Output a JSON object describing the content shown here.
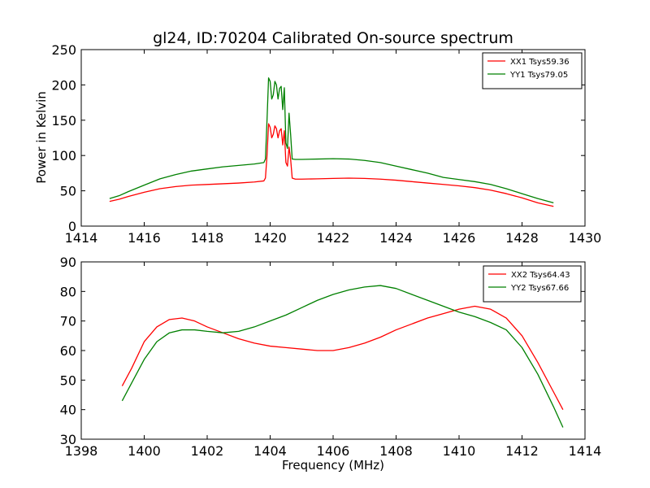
{
  "figure": {
    "title": "gl24, ID:70204 Calibrated On-source spectrum",
    "ylabel": "Power in Kelvin",
    "xlabel": "Frequency (MHz)"
  },
  "chart_data": [
    {
      "type": "line",
      "title": "gl24, ID:70204 Calibrated On-source spectrum",
      "xlabel": "",
      "ylabel": "Power in Kelvin",
      "xlim": [
        1414,
        1430
      ],
      "ylim": [
        0,
        250
      ],
      "xticks": [
        1414,
        1416,
        1418,
        1420,
        1422,
        1424,
        1426,
        1428,
        1430
      ],
      "yticks": [
        0,
        50,
        100,
        150,
        200,
        250
      ],
      "legend_position": "top-right",
      "series": [
        {
          "name": "XX1 Tsys59.36",
          "color": "#ff0000",
          "points": [
            [
              1414.9,
              35
            ],
            [
              1415.2,
              38
            ],
            [
              1415.5,
              42
            ],
            [
              1416.0,
              48
            ],
            [
              1416.5,
              53
            ],
            [
              1417.0,
              56
            ],
            [
              1417.5,
              58
            ],
            [
              1418.0,
              59
            ],
            [
              1418.5,
              60
            ],
            [
              1419.0,
              61
            ],
            [
              1419.5,
              62.5
            ],
            [
              1419.8,
              64
            ],
            [
              1419.85,
              68
            ],
            [
              1419.9,
              100
            ],
            [
              1419.95,
              145
            ],
            [
              1420.0,
              140
            ],
            [
              1420.05,
              125
            ],
            [
              1420.1,
              130
            ],
            [
              1420.15,
              142
            ],
            [
              1420.2,
              138
            ],
            [
              1420.25,
              125
            ],
            [
              1420.3,
              135
            ],
            [
              1420.35,
              138
            ],
            [
              1420.4,
              115
            ],
            [
              1420.45,
              135
            ],
            [
              1420.5,
              90
            ],
            [
              1420.55,
              85
            ],
            [
              1420.6,
              112
            ],
            [
              1420.65,
              95
            ],
            [
              1420.7,
              68
            ],
            [
              1420.8,
              66.5
            ],
            [
              1421.0,
              66.5
            ],
            [
              1421.5,
              67
            ],
            [
              1422.0,
              67.5
            ],
            [
              1422.5,
              68
            ],
            [
              1423.0,
              67.5
            ],
            [
              1423.5,
              66.5
            ],
            [
              1424.0,
              65
            ],
            [
              1424.5,
              63
            ],
            [
              1425.0,
              61
            ],
            [
              1425.5,
              59
            ],
            [
              1426.0,
              57
            ],
            [
              1426.5,
              54.5
            ],
            [
              1427.0,
              51
            ],
            [
              1427.5,
              46
            ],
            [
              1428.0,
              40
            ],
            [
              1428.5,
              33
            ],
            [
              1429.0,
              28
            ]
          ]
        },
        {
          "name": "YY1 Tsys79.05",
          "color": "#008000",
          "points": [
            [
              1414.9,
              39
            ],
            [
              1415.2,
              43
            ],
            [
              1415.5,
              49
            ],
            [
              1416.0,
              58
            ],
            [
              1416.5,
              67
            ],
            [
              1417.0,
              73
            ],
            [
              1417.5,
              78
            ],
            [
              1418.0,
              81
            ],
            [
              1418.5,
              84
            ],
            [
              1419.0,
              86
            ],
            [
              1419.5,
              88
            ],
            [
              1419.8,
              90
            ],
            [
              1419.85,
              95
            ],
            [
              1419.9,
              150
            ],
            [
              1419.95,
              210
            ],
            [
              1420.0,
              205
            ],
            [
              1420.05,
              180
            ],
            [
              1420.1,
              186
            ],
            [
              1420.15,
              205
            ],
            [
              1420.2,
              200
            ],
            [
              1420.25,
              180
            ],
            [
              1420.3,
              195
            ],
            [
              1420.35,
              198
            ],
            [
              1420.4,
              165
            ],
            [
              1420.45,
              196
            ],
            [
              1420.5,
              118
            ],
            [
              1420.55,
              110
            ],
            [
              1420.6,
              160
            ],
            [
              1420.65,
              130
            ],
            [
              1420.7,
              95
            ],
            [
              1420.8,
              94.5
            ],
            [
              1421.0,
              94.5
            ],
            [
              1421.5,
              95
            ],
            [
              1422.0,
              95.5
            ],
            [
              1422.5,
              95
            ],
            [
              1423.0,
              93
            ],
            [
              1423.5,
              90
            ],
            [
              1424.0,
              85
            ],
            [
              1424.5,
              80
            ],
            [
              1425.0,
              75
            ],
            [
              1425.5,
              69
            ],
            [
              1426.0,
              66
            ],
            [
              1426.5,
              63
            ],
            [
              1427.0,
              59
            ],
            [
              1427.5,
              53
            ],
            [
              1428.0,
              46
            ],
            [
              1428.5,
              39
            ],
            [
              1429.0,
              33
            ]
          ]
        }
      ]
    },
    {
      "type": "line",
      "title": "",
      "xlabel": "Frequency (MHz)",
      "ylabel": "",
      "xlim": [
        1398,
        1414
      ],
      "ylim": [
        30,
        90
      ],
      "xticks": [
        1398,
        1400,
        1402,
        1404,
        1406,
        1408,
        1410,
        1412,
        1414
      ],
      "yticks": [
        30,
        40,
        50,
        60,
        70,
        80,
        90
      ],
      "legend_position": "top-right",
      "series": [
        {
          "name": "XX2 Tsys64.43",
          "color": "#ff0000",
          "points": [
            [
              1399.3,
              48
            ],
            [
              1399.6,
              54
            ],
            [
              1400.0,
              63
            ],
            [
              1400.4,
              68
            ],
            [
              1400.8,
              70.5
            ],
            [
              1401.2,
              71
            ],
            [
              1401.6,
              70
            ],
            [
              1402.0,
              68
            ],
            [
              1402.5,
              66
            ],
            [
              1403.0,
              64
            ],
            [
              1403.5,
              62.5
            ],
            [
              1404.0,
              61.5
            ],
            [
              1404.5,
              61
            ],
            [
              1405.0,
              60.5
            ],
            [
              1405.5,
              60
            ],
            [
              1406.0,
              60
            ],
            [
              1406.5,
              61
            ],
            [
              1407.0,
              62.5
            ],
            [
              1407.5,
              64.5
            ],
            [
              1408.0,
              67
            ],
            [
              1408.5,
              69
            ],
            [
              1409.0,
              71
            ],
            [
              1409.5,
              72.5
            ],
            [
              1410.0,
              74
            ],
            [
              1410.5,
              75
            ],
            [
              1411.0,
              74
            ],
            [
              1411.5,
              71
            ],
            [
              1412.0,
              65
            ],
            [
              1412.5,
              56
            ],
            [
              1413.0,
              46
            ],
            [
              1413.3,
              40
            ]
          ]
        },
        {
          "name": "YY2 Tsys67.66",
          "color": "#008000",
          "points": [
            [
              1399.3,
              43
            ],
            [
              1399.6,
              49
            ],
            [
              1400.0,
              57
            ],
            [
              1400.4,
              63
            ],
            [
              1400.8,
              66
            ],
            [
              1401.2,
              67
            ],
            [
              1401.6,
              67
            ],
            [
              1402.0,
              66.5
            ],
            [
              1402.5,
              66
            ],
            [
              1403.0,
              66.5
            ],
            [
              1403.5,
              68
            ],
            [
              1404.0,
              70
            ],
            [
              1404.5,
              72
            ],
            [
              1405.0,
              74.5
            ],
            [
              1405.5,
              77
            ],
            [
              1406.0,
              79
            ],
            [
              1406.5,
              80.5
            ],
            [
              1407.0,
              81.5
            ],
            [
              1407.5,
              82
            ],
            [
              1408.0,
              81
            ],
            [
              1408.5,
              79
            ],
            [
              1409.0,
              77
            ],
            [
              1409.5,
              75
            ],
            [
              1410.0,
              73
            ],
            [
              1410.5,
              71.5
            ],
            [
              1411.0,
              69.5
            ],
            [
              1411.5,
              67
            ],
            [
              1412.0,
              61
            ],
            [
              1412.5,
              52
            ],
            [
              1413.0,
              41
            ],
            [
              1413.3,
              34
            ]
          ]
        }
      ]
    }
  ]
}
